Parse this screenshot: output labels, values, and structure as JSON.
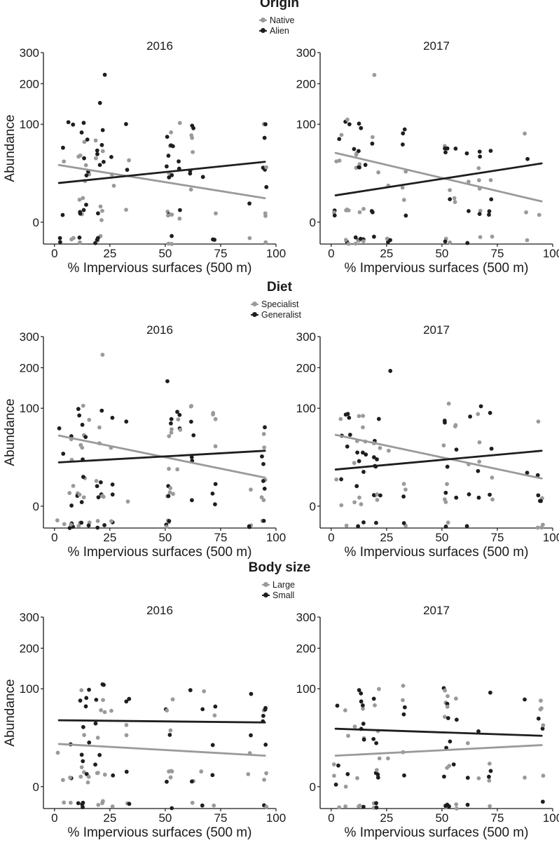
{
  "colors": {
    "grey": "#9a9a9a",
    "black": "#1e1e1e"
  },
  "chart_data": [
    {
      "type": "scatter",
      "section_title": "Origin",
      "legend": [
        {
          "label": "Native",
          "color": "#9a9a9a"
        },
        {
          "label": "Alien",
          "color": "#1e1e1e"
        }
      ],
      "panels": [
        {
          "title": "2016",
          "xlabel": "% Impervious surfaces (500 m)",
          "ylabel": "Abundance",
          "xlim": [
            -5,
            100
          ],
          "ylim": [
            -5,
            300
          ],
          "y_scale": "sqrt",
          "xticks": [
            0,
            25,
            50,
            75,
            100
          ],
          "yticks": [
            0,
            100,
            200,
            300
          ],
          "trend": [
            {
              "series": "Native",
              "x": [
                2,
                95
              ],
              "y": [
                34,
                6
              ]
            },
            {
              "series": "Alien",
              "x": [
                2,
                95
              ],
              "y": [
                16,
                38
              ]
            }
          ],
          "seed": 11
        },
        {
          "title": "2017",
          "xlabel": "% Impervious surfaces (500 m)",
          "ylabel": "Abundance",
          "xlim": [
            -5,
            100
          ],
          "ylim": [
            -5,
            300
          ],
          "y_scale": "sqrt",
          "xticks": [
            0,
            25,
            50,
            75,
            100
          ],
          "yticks": [
            0,
            100,
            200,
            300
          ],
          "trend": [
            {
              "series": "Native",
              "x": [
                2,
                95
              ],
              "y": [
                50,
                4.5
              ]
            },
            {
              "series": "Alien",
              "x": [
                2,
                95
              ],
              "y": [
                7.5,
                36
              ]
            }
          ],
          "seed": 23
        }
      ]
    },
    {
      "type": "scatter",
      "section_title": "Diet",
      "legend": [
        {
          "label": "Specialist",
          "color": "#9a9a9a"
        },
        {
          "label": "Generalist",
          "color": "#1e1e1e"
        }
      ],
      "panels": [
        {
          "title": "2016",
          "xlabel": "% Impervious surfaces (500 m)",
          "ylabel": "Abundance",
          "xlim": [
            -5,
            100
          ],
          "ylim": [
            -5,
            300
          ],
          "y_scale": "sqrt",
          "xticks": [
            0,
            25,
            50,
            75,
            100
          ],
          "yticks": [
            0,
            100,
            200,
            300
          ],
          "trend": [
            {
              "series": "Specialist",
              "x": [
                2,
                95
              ],
              "y": [
                52,
                8.5
              ]
            },
            {
              "series": "Generalist",
              "x": [
                2,
                95
              ],
              "y": [
                20,
                32
              ]
            }
          ],
          "seed": 37
        },
        {
          "title": "2017",
          "xlabel": "% Impervious surfaces (500 m)",
          "ylabel": "Abundance",
          "xlim": [
            -5,
            100
          ],
          "ylim": [
            -5,
            300
          ],
          "y_scale": "sqrt",
          "xticks": [
            0,
            25,
            50,
            75,
            100
          ],
          "yticks": [
            0,
            100,
            200,
            300
          ],
          "trend": [
            {
              "series": "Specialist",
              "x": [
                2,
                95
              ],
              "y": [
                53,
                8
              ]
            },
            {
              "series": "Generalist",
              "x": [
                2,
                95
              ],
              "y": [
                14,
                32
              ]
            }
          ],
          "seed": 41
        }
      ]
    },
    {
      "type": "scatter",
      "section_title": "Body size",
      "legend": [
        {
          "label": "Large",
          "color": "#9a9a9a"
        },
        {
          "label": "Small",
          "color": "#1e1e1e"
        }
      ],
      "panels": [
        {
          "title": "2016",
          "xlabel": "% Impervious surfaces (500 m)",
          "ylabel": "Abundance",
          "xlim": [
            -5,
            100
          ],
          "ylim": [
            -5,
            300
          ],
          "y_scale": "sqrt",
          "xticks": [
            0,
            25,
            50,
            75,
            100
          ],
          "yticks": [
            0,
            100,
            200,
            300
          ],
          "trend": [
            {
              "series": "Large",
              "x": [
                2,
                95
              ],
              "y": [
                19,
                10
              ]
            },
            {
              "series": "Small",
              "x": [
                2,
                95
              ],
              "y": [
                46,
                43
              ]
            }
          ],
          "seed": 53
        },
        {
          "title": "2017",
          "xlabel": "% Impervious surfaces (500 m)",
          "ylabel": "Abundance",
          "xlim": [
            -5,
            100
          ],
          "ylim": [
            -5,
            300
          ],
          "y_scale": "sqrt",
          "xticks": [
            0,
            25,
            50,
            75,
            100
          ],
          "yticks": [
            0,
            100,
            200,
            300
          ],
          "trend": [
            {
              "series": "Large",
              "x": [
                2,
                95
              ],
              "y": [
                10,
                18
              ]
            },
            {
              "series": "Small",
              "x": [
                2,
                95
              ],
              "y": [
                35,
                27
              ]
            }
          ],
          "seed": 67
        }
      ]
    }
  ]
}
